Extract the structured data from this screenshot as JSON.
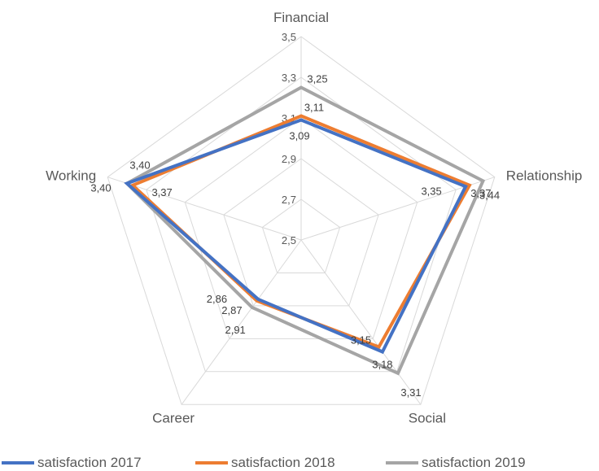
{
  "chart_data": {
    "type": "radar",
    "categories": [
      "Financial",
      "Relationship",
      "Social",
      "Career",
      "Working"
    ],
    "r_ticks": [
      "2,5",
      "2,7",
      "2,9",
      "3,1",
      "3,3",
      "3,5"
    ],
    "rlim": [
      2.5,
      3.5
    ],
    "grid": true,
    "legend_position": "bottom",
    "series": [
      {
        "name": "satisfaction 2017",
        "color": "#4472C4",
        "values": [
          3.09,
          3.35,
          3.18,
          2.86,
          3.4
        ],
        "labels": [
          "3,09",
          "3,35",
          "3,18",
          "2,86",
          "3,40"
        ]
      },
      {
        "name": "satisfaction 2018",
        "color": "#ED7D31",
        "values": [
          3.11,
          3.37,
          3.15,
          2.87,
          3.37
        ],
        "labels": [
          "3,11",
          "3,37",
          "3,15",
          "2,87",
          "3,37"
        ]
      },
      {
        "name": "satisfaction 2019",
        "color": "#A5A5A5",
        "values": [
          3.25,
          3.44,
          3.31,
          2.91,
          3.4
        ],
        "labels": [
          "3,25",
          "3,44",
          "3,31",
          "2,91",
          "3,40"
        ]
      }
    ]
  }
}
